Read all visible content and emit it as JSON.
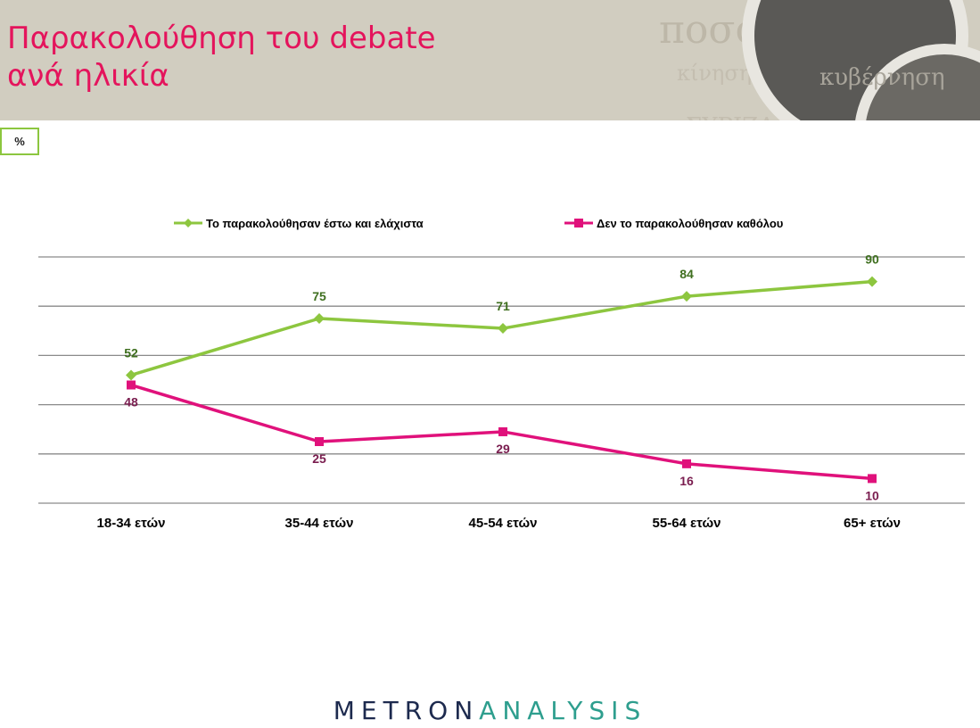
{
  "title": {
    "line1": "Παρακολούθηση του debate",
    "line2": "ανά ηλικία"
  },
  "unit_badge": "%",
  "logo": {
    "part1": "METRON",
    "part2": "ANALYSIS"
  },
  "colors": {
    "accent": "#e4145c",
    "series1": "#8dc63f",
    "series2": "#e0117b",
    "label1": "#3f6f1f",
    "label2": "#7a1d4f",
    "header_bg": "#d1cdc0"
  },
  "chart_data": {
    "type": "line",
    "categories": [
      "18-34 ετών",
      "35-44 ετών",
      "45-54 ετών",
      "55-64 ετών",
      "65+ ετών"
    ],
    "series": [
      {
        "name": "Το παρακολούθησαν έστω και ελάχιστα",
        "values": [
          52,
          75,
          71,
          84,
          90
        ]
      },
      {
        "name": "Δεν το παρακολούθησαν καθόλου",
        "values": [
          48,
          25,
          29,
          16,
          10
        ]
      }
    ],
    "ylim": [
      0,
      100
    ],
    "gridlines": true,
    "legend": "top",
    "title": "",
    "xlabel": "",
    "ylabel": ""
  }
}
